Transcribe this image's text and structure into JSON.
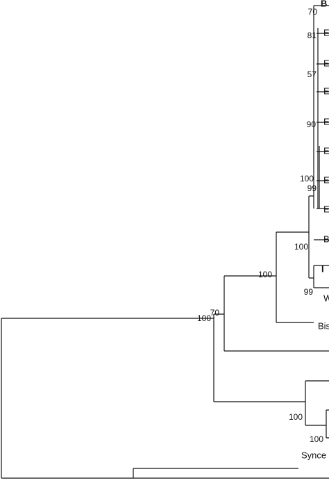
{
  "tree": {
    "leaves": [
      "B",
      "E",
      "E",
      "E",
      "E",
      "E",
      "E",
      "E",
      "B",
      "I",
      "W",
      "Bis",
      "Synce"
    ],
    "support": [
      "70",
      "81",
      "57",
      "90",
      "100",
      "99",
      "100",
      "99",
      "100",
      "70",
      "100",
      "100",
      "100"
    ]
  }
}
